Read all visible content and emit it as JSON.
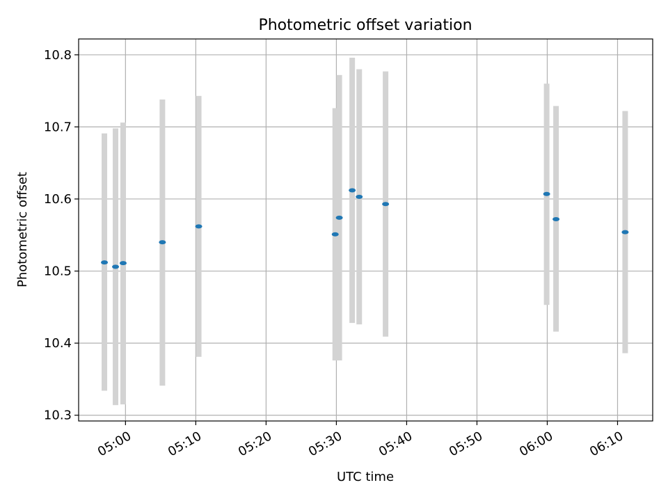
{
  "chart_data": {
    "type": "scatter",
    "title": "Photometric offset variation",
    "xlabel": "UTC time",
    "ylabel": "Photometric offset",
    "x_unit": "UTC time (HH:MM)",
    "xlim": [
      "04:53:20",
      "06:15:00"
    ],
    "ylim": [
      10.292,
      10.822
    ],
    "x_ticks": [
      "05:00",
      "05:10",
      "05:20",
      "05:30",
      "05:40",
      "05:50",
      "06:00",
      "06:10"
    ],
    "y_ticks": [
      10.3,
      10.4,
      10.5,
      10.6,
      10.7,
      10.8
    ],
    "y_tick_labels": [
      "10.3",
      "10.4",
      "10.5",
      "10.6",
      "10.7",
      "10.8"
    ],
    "grid": true,
    "colors": {
      "point": "#1f77b4",
      "errorbar": "#d3d3d3",
      "grid": "#b0b0b0",
      "axes": "#000000"
    },
    "points": [
      {
        "x": "04:57:00",
        "y": 10.512,
        "y_low": 10.334,
        "y_high": 10.691
      },
      {
        "x": "04:58:35",
        "y": 10.506,
        "y_low": 10.314,
        "y_high": 10.698
      },
      {
        "x": "04:59:40",
        "y": 10.511,
        "y_low": 10.315,
        "y_high": 10.706
      },
      {
        "x": "05:05:15",
        "y": 10.54,
        "y_low": 10.341,
        "y_high": 10.738
      },
      {
        "x": "05:10:25",
        "y": 10.562,
        "y_low": 10.381,
        "y_high": 10.743
      },
      {
        "x": "05:29:50",
        "y": 10.551,
        "y_low": 10.376,
        "y_high": 10.726
      },
      {
        "x": "05:30:25",
        "y": 10.574,
        "y_low": 10.376,
        "y_high": 10.772
      },
      {
        "x": "05:32:15",
        "y": 10.612,
        "y_low": 10.428,
        "y_high": 10.796
      },
      {
        "x": "05:33:15",
        "y": 10.603,
        "y_low": 10.426,
        "y_high": 10.78
      },
      {
        "x": "05:37:00",
        "y": 10.593,
        "y_low": 10.409,
        "y_high": 10.777
      },
      {
        "x": "05:59:55",
        "y": 10.607,
        "y_low": 10.453,
        "y_high": 10.76
      },
      {
        "x": "06:01:15",
        "y": 10.572,
        "y_low": 10.416,
        "y_high": 10.729
      },
      {
        "x": "06:11:05",
        "y": 10.554,
        "y_low": 10.386,
        "y_high": 10.722
      }
    ]
  }
}
